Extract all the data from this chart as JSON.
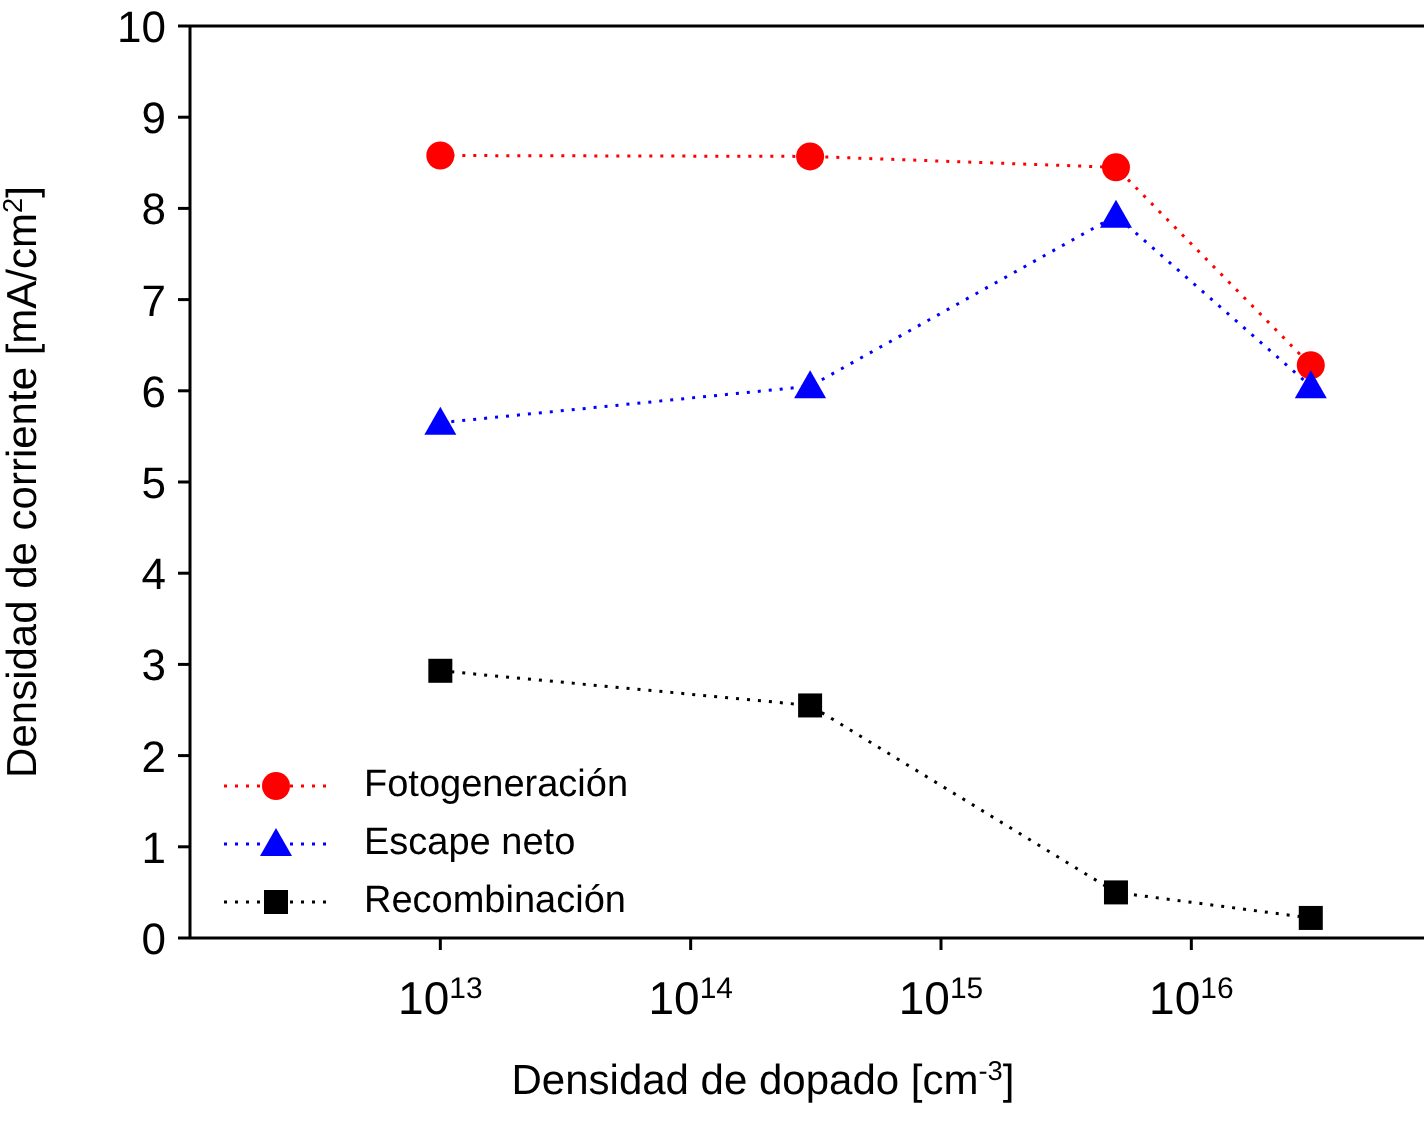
{
  "chart_data": {
    "type": "line",
    "xlabel": "Densidad de dopado [cm$^{-3}$]",
    "ylabel": "Densidad de corriente [mA/cm$^{2}$]",
    "x": [
      10000000000000.0,
      300000000000000.0,
      5000000000000000.0,
      3e+16
    ],
    "series": [
      {
        "name": "Fotogeneración",
        "color": "#ff0000",
        "marker": "circle",
        "values": [
          8.58,
          8.57,
          8.45,
          6.28
        ]
      },
      {
        "name": "Escape neto",
        "color": "#0000ff",
        "marker": "triangle",
        "values": [
          5.65,
          6.05,
          7.92,
          6.05
        ]
      },
      {
        "name": "Recombinación",
        "color": "#000000",
        "marker": "square",
        "values": [
          2.93,
          2.55,
          0.5,
          0.22
        ]
      }
    ],
    "log": "x",
    "xlim": [
      1000000000000.0,
      8.5e+16
    ],
    "xticks": [
      {
        "value": 10000000000000.0,
        "label": "10$^{13}$"
      },
      {
        "value": 100000000000000.0,
        "label": "10$^{14}$"
      },
      {
        "value": 1000000000000000.0,
        "label": "10$^{15}$"
      },
      {
        "value": 1e+16,
        "label": "10$^{16}$"
      }
    ],
    "ylim": [
      0,
      10
    ],
    "yticks": [
      0,
      1,
      2,
      3,
      4,
      5,
      6,
      7,
      8,
      9,
      10
    ],
    "grid": false,
    "legend": "bottom left",
    "line_style": "dotted"
  }
}
